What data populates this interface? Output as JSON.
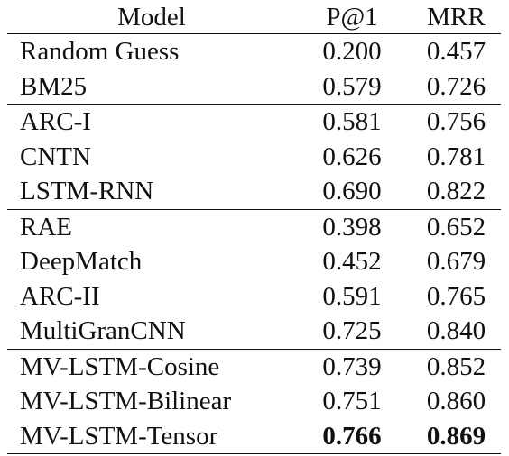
{
  "table": {
    "headers": {
      "model": "Model",
      "p_at_1": "P@1",
      "mrr": "MRR"
    },
    "rows": [
      {
        "model": "Random Guess",
        "p_at_1": "0.200",
        "mrr": "0.457"
      },
      {
        "model": "BM25",
        "p_at_1": "0.579",
        "mrr": "0.726"
      },
      {
        "model": "ARC-I",
        "p_at_1": "0.581",
        "mrr": "0.756"
      },
      {
        "model": "CNTN",
        "p_at_1": "0.626",
        "mrr": "0.781"
      },
      {
        "model": "LSTM-RNN",
        "p_at_1": "0.690",
        "mrr": "0.822"
      },
      {
        "model": "RAE",
        "p_at_1": "0.398",
        "mrr": "0.652"
      },
      {
        "model": "DeepMatch",
        "p_at_1": "0.452",
        "mrr": "0.679"
      },
      {
        "model": "ARC-II",
        "p_at_1": "0.591",
        "mrr": "0.765"
      },
      {
        "model": "MultiGranCNN",
        "p_at_1": "0.725",
        "mrr": "0.840"
      },
      {
        "model": "MV-LSTM-Cosine",
        "p_at_1": "0.739",
        "mrr": "0.852"
      },
      {
        "model": "MV-LSTM-Bilinear",
        "p_at_1": "0.751",
        "mrr": "0.860"
      },
      {
        "model": "MV-LSTM-Tensor",
        "p_at_1": "0.766",
        "mrr": "0.869"
      }
    ]
  }
}
